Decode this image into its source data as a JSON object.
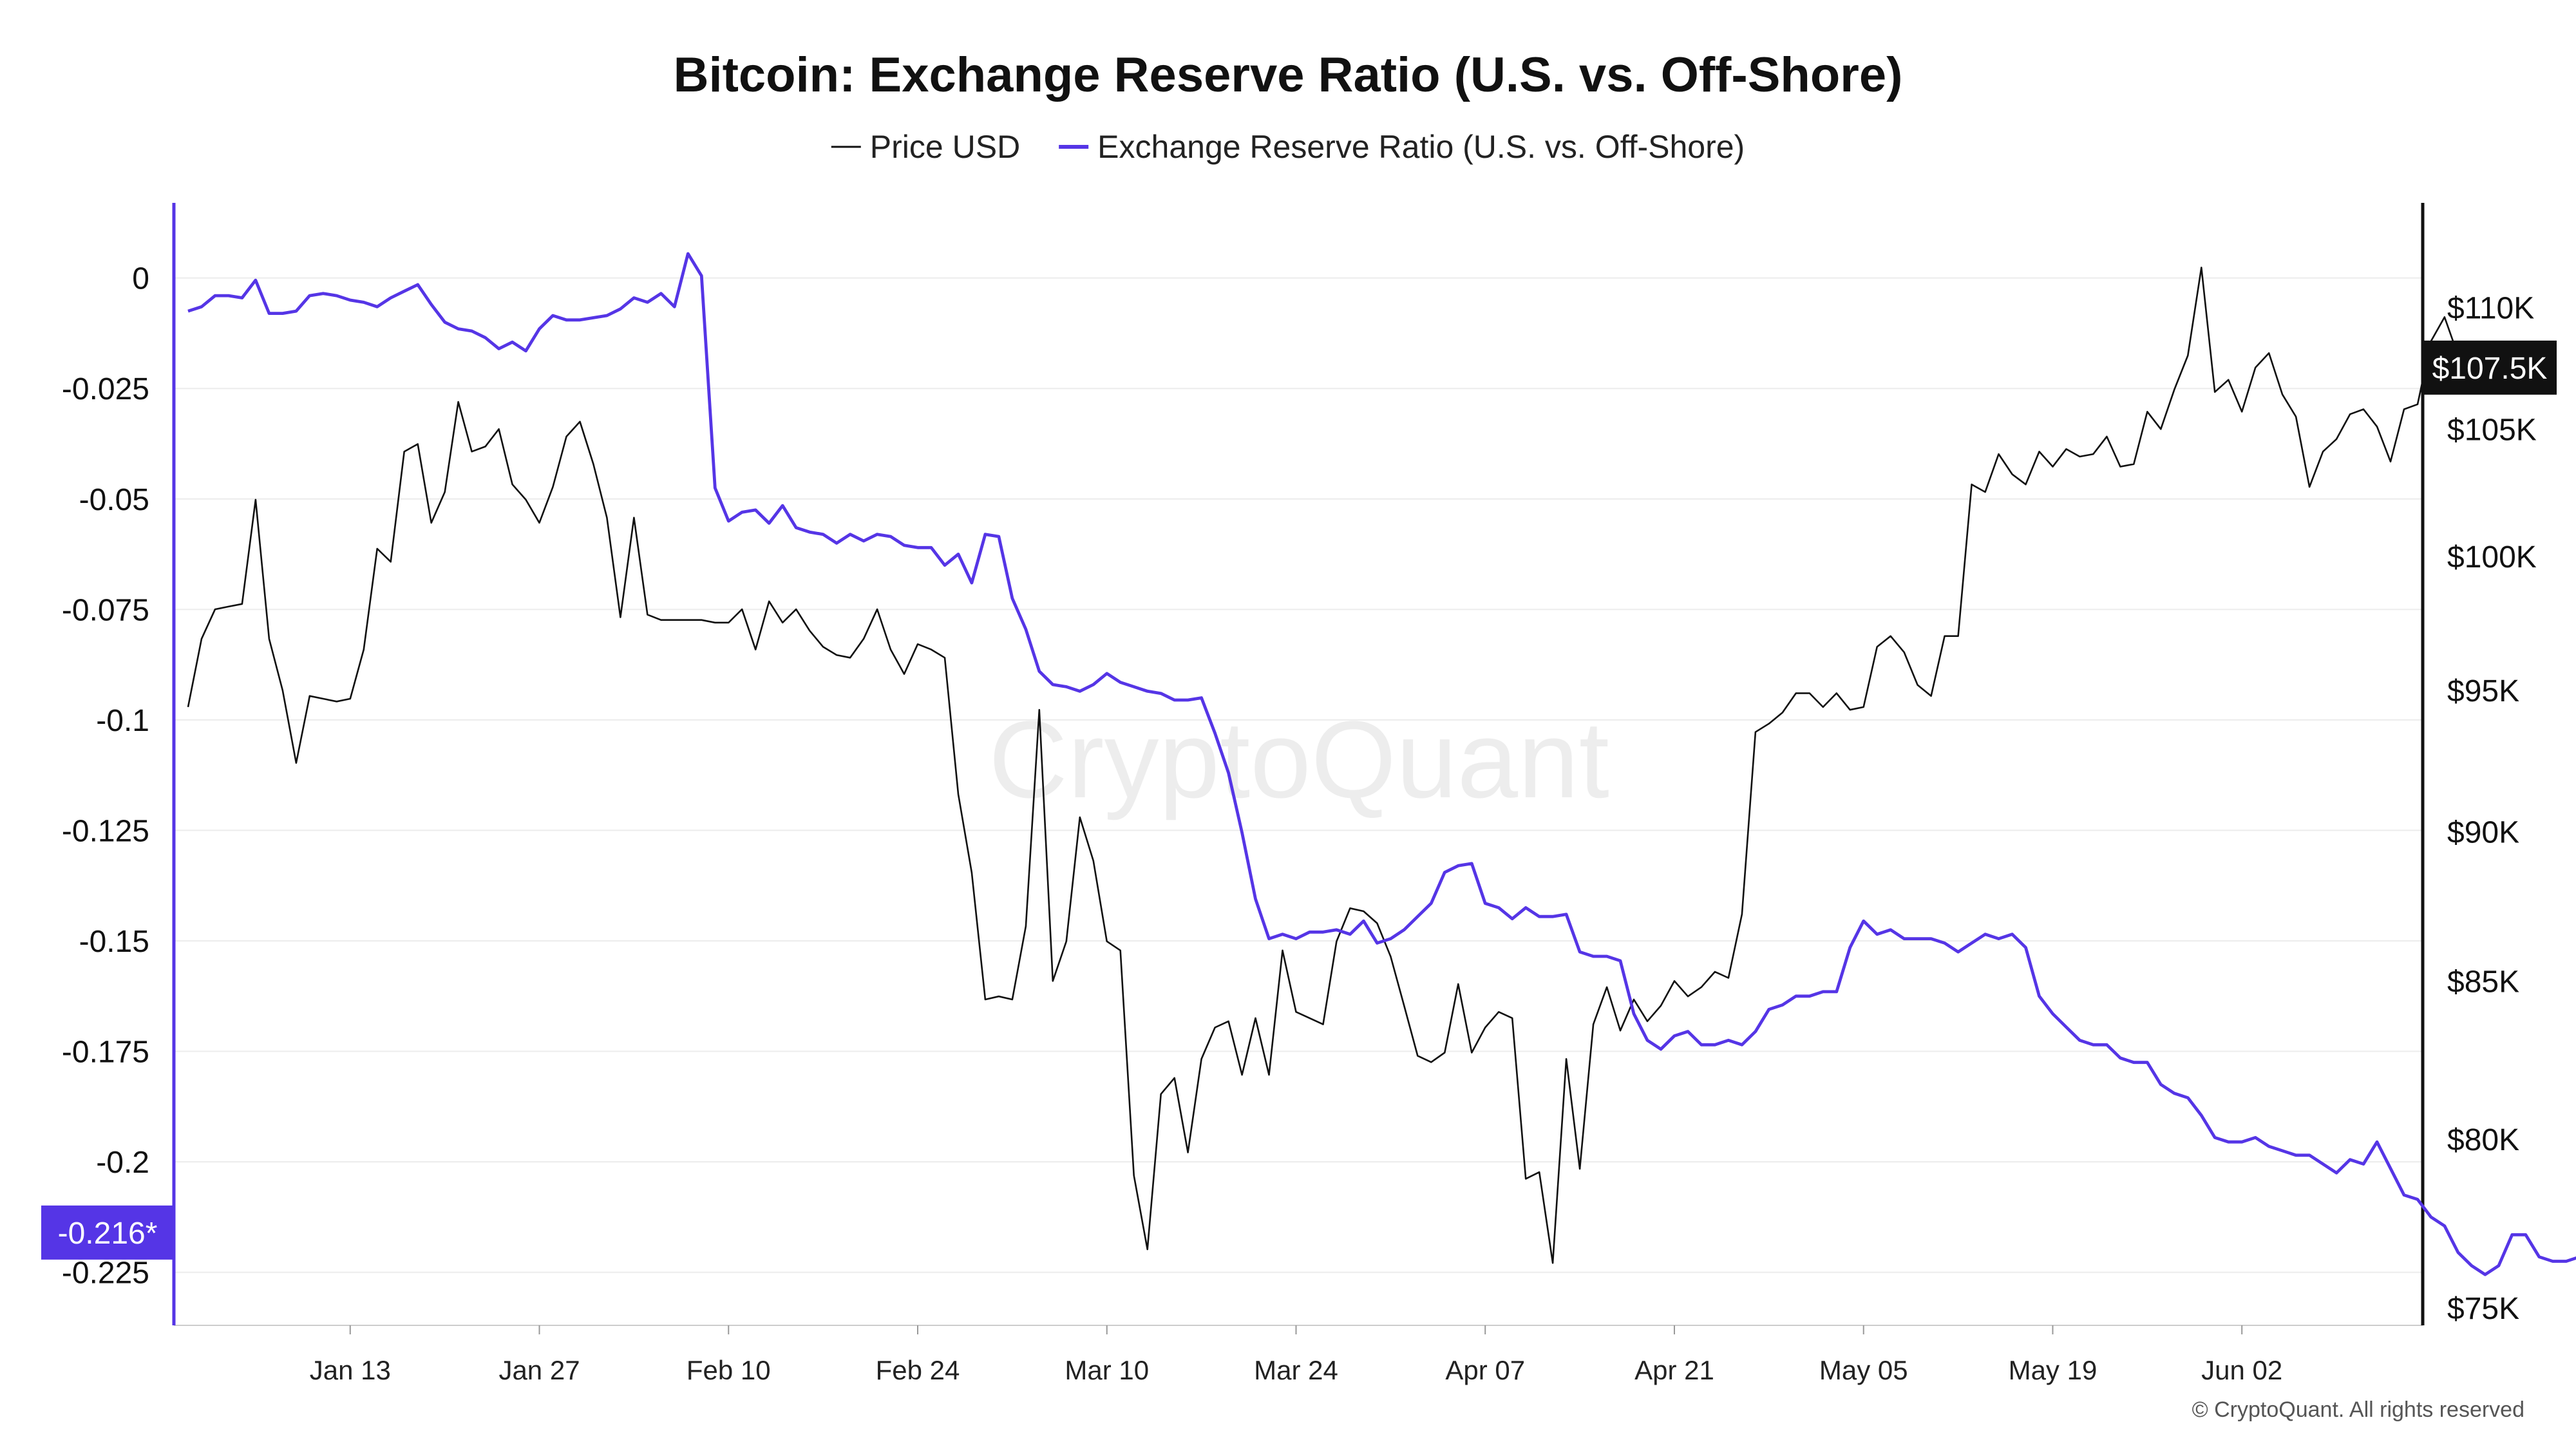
{
  "chart_data": {
    "type": "line",
    "title": "Bitcoin: Exchange Reserve Ratio (U.S. vs. Off-Shore)",
    "watermark": "CryptoQuant",
    "copyright": "© CryptoQuant. All rights reserved",
    "x_start": "2025-01-01",
    "x_end": "2025-06-13",
    "x_ticks": [
      {
        "date": "2025-01-13",
        "label": "Jan 13"
      },
      {
        "date": "2025-01-27",
        "label": "Jan 27"
      },
      {
        "date": "2025-02-10",
        "label": "Feb 10"
      },
      {
        "date": "2025-02-24",
        "label": "Feb 24"
      },
      {
        "date": "2025-03-10",
        "label": "Mar 10"
      },
      {
        "date": "2025-03-24",
        "label": "Mar 24"
      },
      {
        "date": "2025-04-07",
        "label": "Apr 07"
      },
      {
        "date": "2025-04-21",
        "label": "Apr 21"
      },
      {
        "date": "2025-05-05",
        "label": "May 05"
      },
      {
        "date": "2025-05-19",
        "label": "May 19"
      },
      {
        "date": "2025-06-02",
        "label": "Jun 02"
      }
    ],
    "left_axis": {
      "range": [
        -0.237,
        0.017
      ],
      "ticks": [
        {
          "value": 0,
          "label": "0"
        },
        {
          "value": -0.025,
          "label": "-0.025"
        },
        {
          "value": -0.05,
          "label": "-0.05"
        },
        {
          "value": -0.075,
          "label": "-0.075"
        },
        {
          "value": -0.1,
          "label": "-0.1"
        },
        {
          "value": -0.125,
          "label": "-0.125"
        },
        {
          "value": -0.15,
          "label": "-0.15"
        },
        {
          "value": -0.175,
          "label": "-0.175"
        },
        {
          "value": -0.2,
          "label": "-0.2"
        },
        {
          "value": -0.225,
          "label": "-0.225"
        }
      ],
      "current_label": "-0.216*",
      "current_value": -0.216
    },
    "right_axis": {
      "scale": "log",
      "range": [
        74500,
        114500
      ],
      "ticks": [
        {
          "value": 75000,
          "label": "$75K"
        },
        {
          "value": 80000,
          "label": "$80K"
        },
        {
          "value": 85000,
          "label": "$85K"
        },
        {
          "value": 90000,
          "label": "$90K"
        },
        {
          "value": 95000,
          "label": "$95K"
        },
        {
          "value": 100000,
          "label": "$100K"
        },
        {
          "value": 105000,
          "label": "$105K"
        },
        {
          "value": 110000,
          "label": "$110K"
        }
      ],
      "current_label": "$107.5K",
      "current_value": 107500
    },
    "grid": true,
    "legend": "top-center",
    "series": [
      {
        "name": "Price USD",
        "axis": "right",
        "color": "#111111",
        "start_date": "2025-01-01",
        "values": [
          94400,
          96900,
          98000,
          98100,
          98200,
          102200,
          96900,
          95000,
          92400,
          94800,
          94700,
          94600,
          94700,
          96500,
          100300,
          99800,
          104100,
          104400,
          101300,
          102500,
          106100,
          104100,
          104300,
          105000,
          102800,
          102200,
          101300,
          102700,
          104700,
          105300,
          103600,
          101500,
          97700,
          101500,
          97800,
          97600,
          97600,
          97600,
          97600,
          97500,
          97500,
          98000,
          96500,
          98300,
          97500,
          98000,
          97200,
          96600,
          96300,
          96200,
          96900,
          98000,
          96500,
          95600,
          96700,
          96500,
          96200,
          91300,
          88600,
          84400,
          84500,
          84400,
          86800,
          94300,
          85000,
          86300,
          90500,
          89000,
          86300,
          86000,
          78900,
          76700,
          81400,
          81900,
          79600,
          82500,
          83500,
          83700,
          82000,
          83800,
          82000,
          86000,
          84000,
          83800,
          83600,
          86300,
          87400,
          87300,
          86900,
          85800,
          84200,
          82600,
          82400,
          82700,
          84900,
          82700,
          83500,
          84000,
          83800,
          78800,
          79000,
          76300,
          82500,
          79100,
          83600,
          84800,
          83400,
          84400,
          83700,
          84200,
          85000,
          84500,
          84800,
          85300,
          85100,
          87200,
          93500,
          93800,
          94200,
          94900,
          94900,
          94400,
          94900,
          94300,
          94400,
          96600,
          97000,
          96400,
          95200,
          94800,
          97000,
          97000,
          102800,
          102500,
          104000,
          103200,
          102800,
          104100,
          103500,
          104200,
          103900,
          104000,
          104700,
          103500,
          103600,
          105700,
          105000,
          106600,
          108000,
          111700,
          106500,
          107000,
          105700,
          107500,
          108100,
          106400,
          105500,
          102700,
          104100,
          104600,
          105600,
          105800,
          105100,
          103700,
          105800,
          106000,
          108600,
          109600,
          108000,
          107000
        ]
      },
      {
        "name": "Exchange Reserve Ratio (U.S. vs. Off-Shore)",
        "axis": "left",
        "color": "#5535e6",
        "start_date": "2025-01-01",
        "values": [
          -0.0075,
          -0.0065,
          -0.004,
          -0.004,
          -0.0045,
          -0.0005,
          -0.008,
          -0.008,
          -0.0075,
          -0.004,
          -0.0035,
          -0.004,
          -0.005,
          -0.0055,
          -0.0065,
          -0.0045,
          -0.003,
          -0.0015,
          -0.006,
          -0.01,
          -0.0115,
          -0.012,
          -0.0135,
          -0.016,
          -0.0145,
          -0.0165,
          -0.0115,
          -0.0085,
          -0.0095,
          -0.0095,
          -0.009,
          -0.0085,
          -0.007,
          -0.0045,
          -0.0055,
          -0.0035,
          -0.0065,
          0.0055,
          0.0005,
          -0.0475,
          -0.055,
          -0.053,
          -0.0525,
          -0.0555,
          -0.0515,
          -0.0565,
          -0.0575,
          -0.058,
          -0.06,
          -0.058,
          -0.0595,
          -0.058,
          -0.0585,
          -0.0605,
          -0.061,
          -0.061,
          -0.065,
          -0.0625,
          -0.069,
          -0.058,
          -0.0585,
          -0.0725,
          -0.0795,
          -0.089,
          -0.092,
          -0.0925,
          -0.0935,
          -0.092,
          -0.0895,
          -0.0915,
          -0.0925,
          -0.0935,
          -0.094,
          -0.0955,
          -0.0955,
          -0.095,
          -0.103,
          -0.112,
          -0.1255,
          -0.1405,
          -0.1495,
          -0.1485,
          -0.1495,
          -0.148,
          -0.148,
          -0.1475,
          -0.1485,
          -0.1455,
          -0.1505,
          -0.1495,
          -0.1475,
          -0.1445,
          -0.1415,
          -0.1345,
          -0.133,
          -0.1325,
          -0.1415,
          -0.1425,
          -0.145,
          -0.1425,
          -0.1445,
          -0.1445,
          -0.144,
          -0.1525,
          -0.1535,
          -0.1535,
          -0.1545,
          -0.1665,
          -0.1725,
          -0.1745,
          -0.1715,
          -0.1705,
          -0.1735,
          -0.1735,
          -0.1725,
          -0.1735,
          -0.1705,
          -0.1655,
          -0.1645,
          -0.1625,
          -0.1625,
          -0.1615,
          -0.1615,
          -0.1515,
          -0.1455,
          -0.1485,
          -0.1475,
          -0.1495,
          -0.1495,
          -0.1495,
          -0.1505,
          -0.1525,
          -0.1505,
          -0.1485,
          -0.1495,
          -0.1485,
          -0.1515,
          -0.1625,
          -0.1665,
          -0.1695,
          -0.1725,
          -0.1735,
          -0.1735,
          -0.1765,
          -0.1775,
          -0.1775,
          -0.1825,
          -0.1845,
          -0.1855,
          -0.1895,
          -0.1945,
          -0.1955,
          -0.1955,
          -0.1945,
          -0.1965,
          -0.1975,
          -0.1985,
          -0.1985,
          -0.2005,
          -0.2025,
          -0.1995,
          -0.2005,
          -0.1955,
          -0.2015,
          -0.2075,
          -0.2085,
          -0.2125,
          -0.2145,
          -0.2205,
          -0.2235,
          -0.2255,
          -0.2235,
          -0.2165,
          -0.2165,
          -0.2215,
          -0.2225,
          -0.2225,
          -0.2215,
          -0.2205,
          -0.2215,
          -0.2205,
          -0.2165,
          -0.2165
        ]
      }
    ]
  }
}
